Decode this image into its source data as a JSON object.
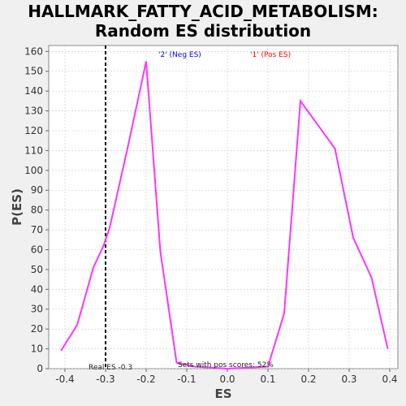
{
  "chart_data": {
    "type": "line",
    "title_line1": "HALLMARK_FATTY_ACID_METABOLISM:",
    "title_line2": "Random ES distribution",
    "xlabel": "ES",
    "ylabel": "P(ES)",
    "xlim": [
      -0.44,
      0.42
    ],
    "ylim": [
      0,
      163
    ],
    "x_ticks": [
      -0.4,
      -0.3,
      -0.2,
      -0.1,
      0.0,
      0.1,
      0.2,
      0.3,
      0.4
    ],
    "x_tick_labels": [
      "-0.4",
      "-0.3",
      "-0.2",
      "-0.1",
      "0.0",
      "0.1",
      "0.2",
      "0.3",
      "0.4"
    ],
    "y_ticks": [
      0,
      10,
      20,
      30,
      40,
      50,
      60,
      70,
      80,
      90,
      100,
      110,
      120,
      130,
      140,
      150,
      160
    ],
    "grid": true,
    "series": [
      {
        "color": "#ff33ff",
        "x": [
          -0.41,
          -0.37,
          -0.33,
          -0.305,
          -0.29,
          -0.245,
          -0.2,
          -0.165,
          -0.125,
          -0.08,
          0.0,
          0.1,
          0.14,
          0.18,
          0.265,
          0.31,
          0.355,
          0.395
        ],
        "y": [
          9,
          22,
          51,
          62,
          71,
          112,
          155,
          59,
          3,
          1,
          0,
          1,
          28,
          135,
          111,
          66,
          46,
          10
        ]
      }
    ],
    "real_es": -0.3,
    "annotations": {
      "neg_label": "'2' (Neg ES)",
      "pos_label": "'1' (Pos ES)",
      "real_es_label": "Real ES -0.3",
      "pos_scores_label": "Sets with pos scores: 52%"
    },
    "colors": {
      "line": "#ff33ff",
      "neg": "#0000ff",
      "pos": "#ff0000",
      "real_es_line": "#000000",
      "grid": "#c8c8c8"
    }
  }
}
